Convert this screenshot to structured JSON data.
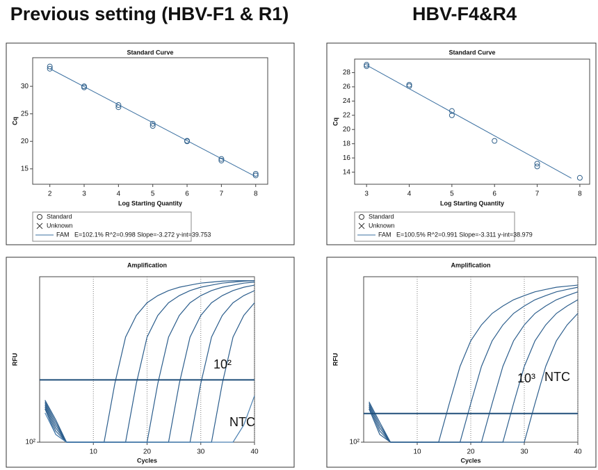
{
  "headings": [
    "Previous setting (HBV-F1 & R1)",
    "HBV-F4&R4"
  ],
  "chart_data": [
    {
      "type": "scatter",
      "title": "Standard Curve",
      "xlabel": "Log Starting Quantity",
      "ylabel": "Cq",
      "x": [
        2,
        2,
        3,
        3,
        4,
        4,
        5,
        5,
        6,
        6,
        7,
        7,
        8,
        8
      ],
      "values": [
        33.6,
        33.2,
        30.0,
        29.8,
        26.6,
        26.2,
        23.2,
        22.8,
        20.1,
        20.0,
        16.8,
        16.5,
        14.1,
        13.8
      ],
      "color": "#2e5f8a",
      "fit": {
        "name": "FAM",
        "label": "E=102.1% R^2=0.998 Slope=-3.272 y-int=39.753",
        "x": [
          2,
          8
        ],
        "values": [
          33.209,
          13.577
        ],
        "color": "#3a6fa0"
      },
      "legend": [
        {
          "marker": "circle",
          "label": "Standard"
        },
        {
          "marker": "cross",
          "label": "Unknown"
        }
      ],
      "xlim": [
        1.5,
        8.35
      ],
      "ylim": [
        12.2,
        35.2
      ],
      "xticks": [
        2,
        3,
        4,
        5,
        6,
        7,
        8
      ],
      "yticks": [
        15,
        20,
        25,
        30
      ]
    },
    {
      "type": "scatter",
      "title": "Standard Curve",
      "xlabel": "Log Starting Quantity",
      "ylabel": "Cq",
      "x": [
        3,
        3,
        4,
        4,
        5,
        5,
        6,
        7,
        7,
        8
      ],
      "values": [
        29.1,
        28.9,
        26.3,
        26.1,
        22.6,
        22.0,
        18.4,
        15.2,
        14.8,
        13.2
      ],
      "color": "#2e5f8a",
      "fit": {
        "name": "FAM",
        "label": "E=100.5% R^2=0.991 Slope=-3.311 y-int=38.979",
        "x": [
          3,
          7.8
        ],
        "values": [
          29.046,
          13.153
        ],
        "color": "#3a6fa0"
      },
      "legend": [
        {
          "marker": "circle",
          "label": "Standard"
        },
        {
          "marker": "cross",
          "label": "Unknown"
        }
      ],
      "xlim": [
        2.72,
        8.23
      ],
      "ylim": [
        12.3,
        29.9
      ],
      "xticks": [
        3,
        4,
        5,
        6,
        7,
        8
      ],
      "yticks": [
        14,
        16,
        18,
        20,
        22,
        24,
        26,
        28
      ]
    },
    {
      "type": "line",
      "title": "Amplification",
      "xlabel": "Cycles",
      "ylabel": "RFU",
      "yscale": "log",
      "grid": true,
      "x": [
        1,
        3,
        5,
        10,
        12,
        14,
        16,
        18,
        20,
        22,
        24,
        26,
        28,
        30,
        32,
        34,
        36,
        38,
        40
      ],
      "series": [
        {
          "color": "#2b5d8c",
          "values": [
            250,
            150,
            100,
            100,
            100,
            400,
            1200,
            2000,
            2700,
            3200,
            3600,
            3900,
            4100,
            4300,
            4400,
            4500,
            4550,
            4550,
            4550
          ]
        },
        {
          "color": "#2b5d8c",
          "values": [
            240,
            140,
            100,
            100,
            100,
            100,
            100,
            400,
            1200,
            2000,
            2700,
            3200,
            3600,
            3900,
            4100,
            4300,
            4400,
            4500,
            4550
          ]
        },
        {
          "color": "#2b5d8c",
          "values": [
            230,
            130,
            100,
            100,
            100,
            100,
            100,
            100,
            100,
            400,
            1200,
            2000,
            2700,
            3200,
            3600,
            3900,
            4100,
            4300,
            4400
          ]
        },
        {
          "color": "#2b5d8c",
          "values": [
            260,
            160,
            100,
            100,
            100,
            100,
            100,
            100,
            100,
            100,
            100,
            400,
            1200,
            2000,
            2700,
            3200,
            3600,
            3900,
            4100
          ]
        },
        {
          "color": "#2b5d8c",
          "values": [
            220,
            120,
            100,
            100,
            100,
            100,
            100,
            100,
            100,
            100,
            100,
            100,
            100,
            400,
            1200,
            2000,
            2700,
            3200,
            3600
          ]
        },
        {
          "color": "#2b5d8c",
          "values": [
            270,
            170,
            100,
            100,
            100,
            100,
            100,
            100,
            100,
            100,
            100,
            100,
            100,
            100,
            100,
            400,
            1200,
            2000,
            2700
          ]
        },
        {
          "color": "#4a7fb0",
          "values": [
            200,
            120,
            100,
            100,
            100,
            100,
            100,
            100,
            100,
            100,
            100,
            100,
            100,
            100,
            100,
            100,
            100,
            150,
            300
          ]
        }
      ],
      "threshold": 436,
      "threshold_color": "#1f4e79",
      "annotations": [
        "10²",
        "NTC"
      ],
      "xlim": [
        0,
        40
      ],
      "ylim": [
        100,
        5000
      ],
      "xticks": [
        10,
        20,
        30,
        40
      ],
      "yticks": [
        {
          "value": 100,
          "label": "10²"
        }
      ]
    },
    {
      "type": "line",
      "title": "Amplification",
      "xlabel": "Cycles",
      "ylabel": "RFU",
      "yscale": "log",
      "grid": true,
      "x": [
        1,
        3,
        5,
        10,
        12,
        14,
        16,
        18,
        20,
        22,
        24,
        26,
        28,
        30,
        32,
        34,
        36,
        38,
        40
      ],
      "series": [
        {
          "color": "#2b5d8c",
          "values": [
            250,
            150,
            100,
            100,
            100,
            100,
            250,
            600,
            1100,
            1600,
            2100,
            2500,
            2900,
            3200,
            3500,
            3700,
            3900,
            4000,
            4100
          ]
        },
        {
          "color": "#2b5d8c",
          "values": [
            240,
            140,
            100,
            100,
            100,
            100,
            100,
            100,
            250,
            600,
            1100,
            1600,
            2100,
            2500,
            2900,
            3200,
            3500,
            3700,
            3900
          ]
        },
        {
          "color": "#2b5d8c",
          "values": [
            230,
            130,
            100,
            100,
            100,
            100,
            100,
            100,
            100,
            100,
            250,
            600,
            1100,
            1600,
            2100,
            2500,
            2900,
            3200,
            3500
          ]
        },
        {
          "color": "#2b5d8c",
          "values": [
            260,
            160,
            100,
            100,
            100,
            100,
            100,
            100,
            100,
            100,
            100,
            100,
            250,
            600,
            1100,
            1600,
            2100,
            2500,
            2900
          ]
        },
        {
          "color": "#2b5d8c",
          "values": [
            220,
            120,
            100,
            100,
            100,
            100,
            100,
            100,
            100,
            100,
            100,
            100,
            100,
            100,
            250,
            600,
            1100,
            1600,
            2100
          ]
        }
      ],
      "threshold": 197,
      "threshold_color": "#1f4e79",
      "annotations": [
        "10³",
        "NTC"
      ],
      "xlim": [
        0,
        40
      ],
      "ylim": [
        100,
        5000
      ],
      "xticks": [
        10,
        20,
        30,
        40
      ],
      "yticks": [
        {
          "value": 100,
          "label": "10²"
        }
      ]
    }
  ]
}
